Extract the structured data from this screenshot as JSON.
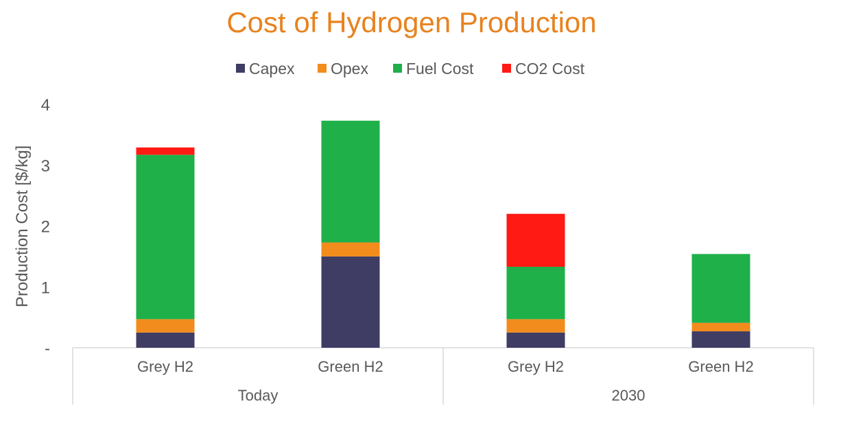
{
  "chart_data": {
    "type": "bar",
    "stacked": true,
    "title": "Cost of Hydrogen Production",
    "ylabel": "Production Cost [$/kg]",
    "xlabel": "",
    "ylim": [
      0,
      4
    ],
    "yticks": [
      {
        "value": 0,
        "label": "-"
      },
      {
        "value": 1,
        "label": "1"
      },
      {
        "value": 2,
        "label": "2"
      },
      {
        "value": 3,
        "label": "3"
      },
      {
        "value": 4,
        "label": "4"
      }
    ],
    "categories": [
      "Grey H2",
      "Green H2",
      "Grey H2",
      "Green H2"
    ],
    "groups": [
      {
        "label": "Today",
        "categories": [
          0,
          1
        ]
      },
      {
        "label": "2030",
        "categories": [
          2,
          3
        ]
      }
    ],
    "legend_position": "top",
    "grid": false,
    "series": [
      {
        "name": "Capex",
        "color": "#3f3d64",
        "values": [
          0.25,
          1.5,
          0.25,
          0.27
        ]
      },
      {
        "name": "Opex",
        "color": "#f28c1c",
        "values": [
          0.22,
          0.23,
          0.22,
          0.14
        ]
      },
      {
        "name": "Fuel Cost",
        "color": "#1fb04a",
        "values": [
          2.7,
          2.0,
          0.86,
          1.13
        ]
      },
      {
        "name": "CO2 Cost",
        "color": "#ff1a14",
        "values": [
          0.12,
          0.0,
          0.87,
          0.0
        ]
      }
    ],
    "colors": {
      "title": "#e8821e",
      "text": "#595959",
      "axis": "#d9d9d9"
    }
  }
}
